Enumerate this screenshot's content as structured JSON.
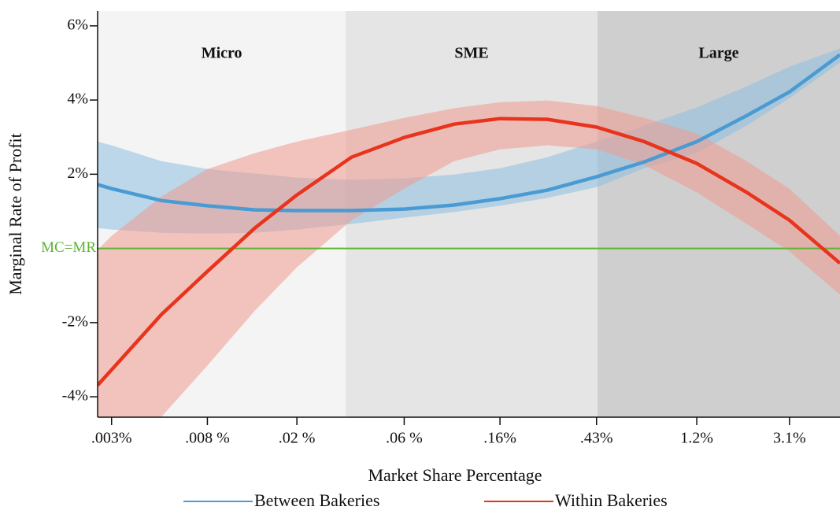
{
  "chart_data": {
    "type": "line",
    "xlabel": "Market Share Percentage",
    "ylabel": "Marginal Rate of Profit",
    "xscale": "log",
    "xlim": [
      0.0026,
      5.2
    ],
    "ylim": [
      -4.55,
      6.4
    ],
    "xticks": [
      {
        "value": 0.003,
        "label": ".003%"
      },
      {
        "value": 0.008,
        "label": ".008 %"
      },
      {
        "value": 0.02,
        "label": ".02 %"
      },
      {
        "value": 0.06,
        "label": ".06 %"
      },
      {
        "value": 0.16,
        "label": ".16%"
      },
      {
        "value": 0.43,
        "label": ".43%"
      },
      {
        "value": 1.2,
        "label": "1.2%"
      },
      {
        "value": 3.1,
        "label": "3.1%"
      }
    ],
    "yticks": [
      {
        "value": 6,
        "label": "6%"
      },
      {
        "value": 4,
        "label": "4%"
      },
      {
        "value": 2,
        "label": "2%"
      },
      {
        "value": -2,
        "label": "-2%"
      },
      {
        "value": -4,
        "label": "-4%"
      }
    ],
    "reference_line": {
      "value": 0,
      "label": "MC=MR",
      "color": "#5cb531"
    },
    "regions": [
      {
        "name": "Micro",
        "from": 0.0026,
        "to": 0.033,
        "color": "#f4f4f4"
      },
      {
        "name": "SME",
        "from": 0.033,
        "to": 0.434,
        "color": "#e5e5e5"
      },
      {
        "name": "Large",
        "from": 0.434,
        "to": 5.2,
        "color": "#cfcfcf"
      }
    ],
    "x": [
      0.0026,
      0.003,
      0.005,
      0.008,
      0.013,
      0.02,
      0.035,
      0.06,
      0.1,
      0.16,
      0.26,
      0.43,
      0.7,
      1.2,
      2,
      3.1,
      5.2
    ],
    "series": [
      {
        "name": "Between Bakeries",
        "color": "#4a9ad4",
        "band_color": "#8cc0e0",
        "values": [
          1.72,
          1.61,
          1.29,
          1.15,
          1.04,
          1.02,
          1.02,
          1.06,
          1.17,
          1.34,
          1.57,
          1.93,
          2.33,
          2.88,
          3.58,
          4.22,
          5.22
        ],
        "upper": [
          2.88,
          2.78,
          2.35,
          2.14,
          2.02,
          1.91,
          1.85,
          1.89,
          1.99,
          2.16,
          2.46,
          2.88,
          3.31,
          3.8,
          4.37,
          4.9,
          5.39
        ],
        "lower": [
          0.55,
          0.51,
          0.42,
          0.4,
          0.42,
          0.51,
          0.66,
          0.83,
          0.98,
          1.15,
          1.36,
          1.65,
          2.16,
          2.57,
          3.31,
          4.05,
          5.01
        ]
      },
      {
        "name": "Within Bakeries",
        "color": "#e8341c",
        "band_color": "#f09a90",
        "values": [
          -3.69,
          -3.27,
          -1.78,
          -0.62,
          0.55,
          1.44,
          2.46,
          2.99,
          3.35,
          3.5,
          3.48,
          3.27,
          2.88,
          2.29,
          1.51,
          0.76,
          -0.4
        ],
        "upper": [
          -0.04,
          0.34,
          1.4,
          2.14,
          2.57,
          2.88,
          3.2,
          3.52,
          3.78,
          3.94,
          3.99,
          3.84,
          3.52,
          3.1,
          2.35,
          1.61,
          0.34
        ],
        "lower": [
          -6.02,
          -5.81,
          -4.54,
          -3.16,
          -1.68,
          -0.51,
          0.76,
          1.61,
          2.35,
          2.67,
          2.78,
          2.67,
          2.25,
          1.51,
          0.66,
          -0.08,
          -1.25
        ]
      }
    ]
  }
}
